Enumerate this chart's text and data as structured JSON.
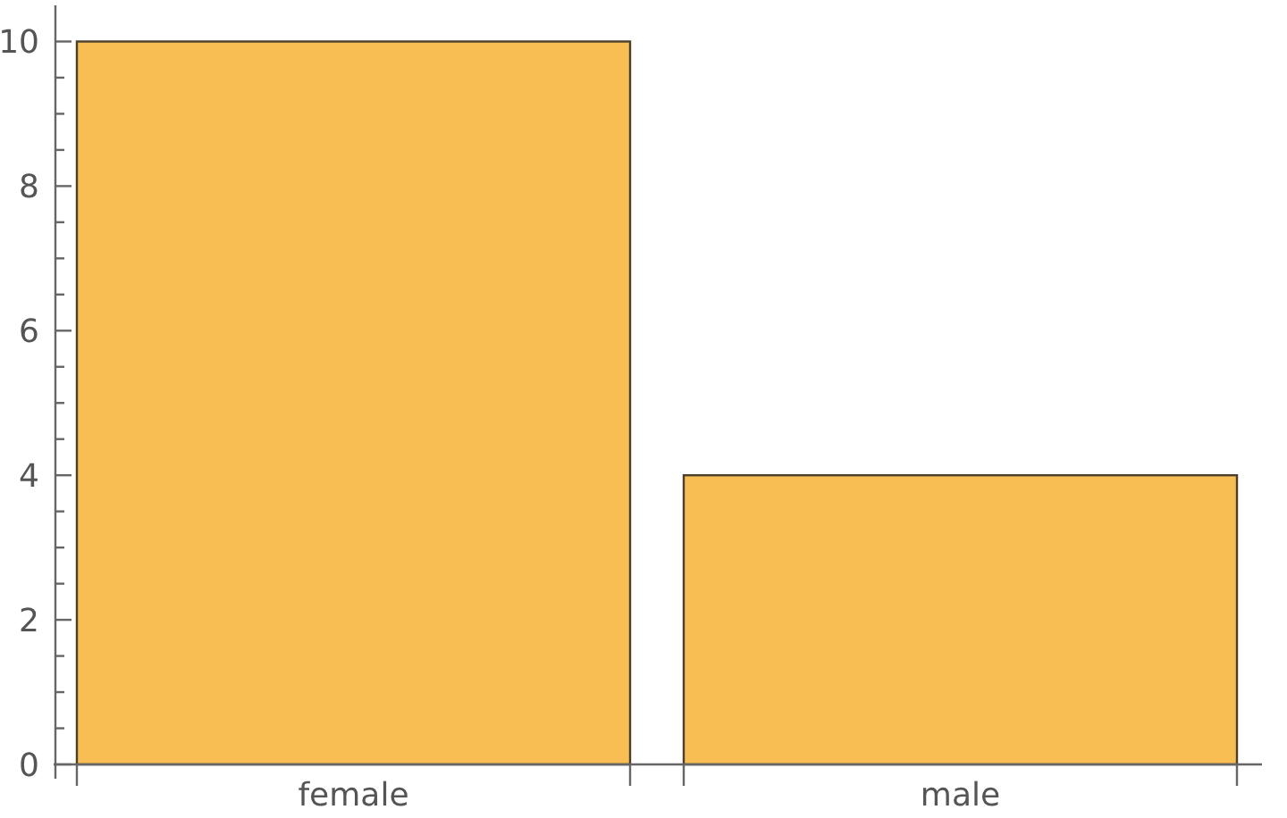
{
  "chart_data": {
    "type": "bar",
    "categories": [
      "female",
      "male"
    ],
    "values": [
      10,
      4
    ],
    "color": "#f9be53",
    "ylim": [
      0,
      10.5
    ],
    "yticks": [
      0,
      {
        "value": 0.5,
        "label": null
      },
      2,
      {
        "value": 1,
        "label": null
      },
      {
        "value": 1.5,
        "label": null
      },
      {
        "value": 2.5,
        "label": null
      },
      {
        "value": 3,
        "label": null
      },
      {
        "value": 3.5,
        "label": null
      },
      4,
      {
        "value": 4.5,
        "label": null
      },
      {
        "value": 5,
        "label": null
      },
      {
        "value": 5.5,
        "label": null
      },
      6,
      {
        "value": 6.5,
        "label": null
      },
      {
        "value": 7,
        "label": null
      },
      {
        "value": 7.5,
        "label": null
      },
      8,
      {
        "value": 8.5,
        "label": null
      },
      {
        "value": 9,
        "label": null
      },
      {
        "value": 9.5,
        "label": null
      },
      10
    ]
  }
}
